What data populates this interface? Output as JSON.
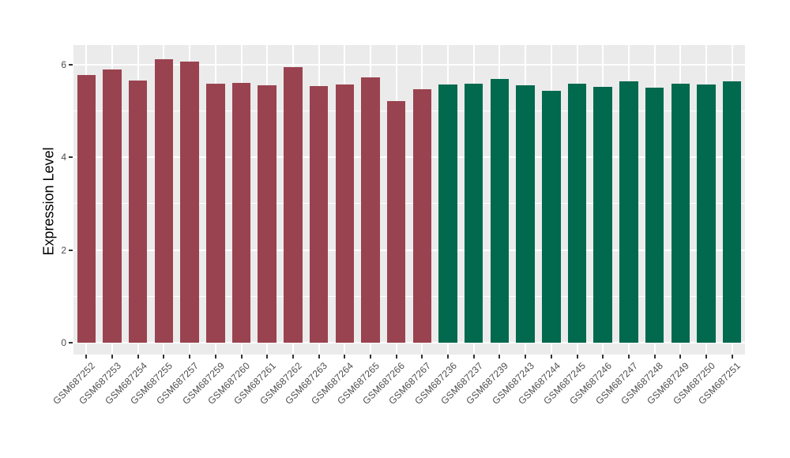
{
  "figure": {
    "background": "#ffffff",
    "panel_background": "#ebebeb",
    "gridline_color": "#ffffff",
    "tick_mark_color": "#333333",
    "tick_label_color": "#4d4d4d",
    "axis_title_color": "#000000"
  },
  "chart_data": {
    "type": "bar",
    "title": "",
    "xlabel": "",
    "ylabel": "Expression Level",
    "ylim": [
      -0.3,
      6.45
    ],
    "yticks": [
      0,
      2,
      4,
      6
    ],
    "yticks_minor": [
      1,
      3,
      5
    ],
    "grid": "major+minor",
    "legend_position": "none",
    "bar_width_fraction": 0.72,
    "group_colors": {
      "left_group": "#9a4350",
      "right_group": "#00694e"
    },
    "categories": [
      "GSM687252",
      "GSM687253",
      "GSM687254",
      "GSM687255",
      "GSM687257",
      "GSM687259",
      "GSM687260",
      "GSM687261",
      "GSM687262",
      "GSM687263",
      "GSM687264",
      "GSM687265",
      "GSM687266",
      "GSM687267",
      "GSM687236",
      "GSM687237",
      "GSM687239",
      "GSM687243",
      "GSM687244",
      "GSM687245",
      "GSM687246",
      "GSM687247",
      "GSM687248",
      "GSM687249",
      "GSM687250",
      "GSM687251"
    ],
    "values": [
      5.78,
      5.89,
      5.66,
      6.12,
      6.06,
      5.58,
      5.61,
      5.56,
      5.95,
      5.53,
      5.57,
      5.72,
      5.21,
      5.46,
      5.57,
      5.59,
      5.69,
      5.56,
      5.43,
      5.58,
      5.52,
      5.64,
      5.51,
      5.58,
      5.57,
      5.64
    ],
    "colors": [
      "#9a4350",
      "#9a4350",
      "#9a4350",
      "#9a4350",
      "#9a4350",
      "#9a4350",
      "#9a4350",
      "#9a4350",
      "#9a4350",
      "#9a4350",
      "#9a4350",
      "#9a4350",
      "#9a4350",
      "#9a4350",
      "#00694e",
      "#00694e",
      "#00694e",
      "#00694e",
      "#00694e",
      "#00694e",
      "#00694e",
      "#00694e",
      "#00694e",
      "#00694e",
      "#00694e",
      "#00694e"
    ]
  }
}
